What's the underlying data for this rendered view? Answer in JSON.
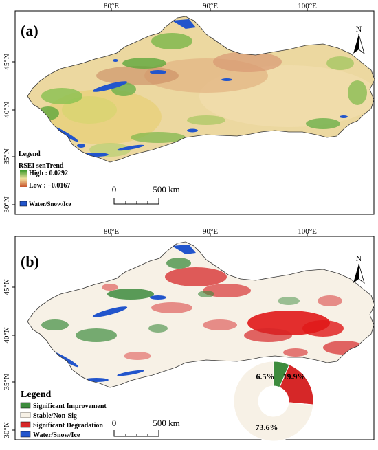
{
  "panel_a": {
    "label": "(a)",
    "lon_labels": [
      "80°E",
      "90°E",
      "100°E"
    ],
    "lat_labels": [
      "45°N",
      "40°N",
      "35°N",
      "30°N"
    ],
    "north": "N",
    "legend": {
      "title": "Legend",
      "subtitle": "RSEI senTrend",
      "high": "High : 0.0292",
      "low": "Low : −0.0167",
      "water": "Water/Snow/Ice"
    },
    "scalebar": {
      "zero": "0",
      "end": "500 km"
    }
  },
  "panel_b": {
    "label": "(b)",
    "lon_labels": [
      "80°E",
      "90°E",
      "100°E"
    ],
    "lat_labels": [
      "45°N",
      "40°N",
      "35°N",
      "30°N"
    ],
    "north": "N",
    "legend": {
      "title": "Legend",
      "items": [
        {
          "label": "Significant Improvement",
          "color": "#3d8b3d"
        },
        {
          "label": "Stable/Non-Sig",
          "color": "#f7f1e6"
        },
        {
          "label": "Significant Degradation",
          "color": "#d62728"
        },
        {
          "label": "Water/Snow/Ice",
          "color": "#2255cc"
        }
      ]
    },
    "scalebar": {
      "zero": "0",
      "end": "500 km"
    },
    "donut": {
      "slices": [
        {
          "label": "6.5%",
          "value": 6.5,
          "color": "#3d8b3d"
        },
        {
          "label": "19.9%",
          "value": 19.9,
          "color": "#d62728"
        },
        {
          "label": "73.6%",
          "value": 73.6,
          "color": "#f7f1e6"
        }
      ]
    }
  },
  "colors": {
    "high": "#3c9a2a",
    "mid": "#f2e3a0",
    "low": "#c9562e",
    "water": "#2255cc"
  }
}
